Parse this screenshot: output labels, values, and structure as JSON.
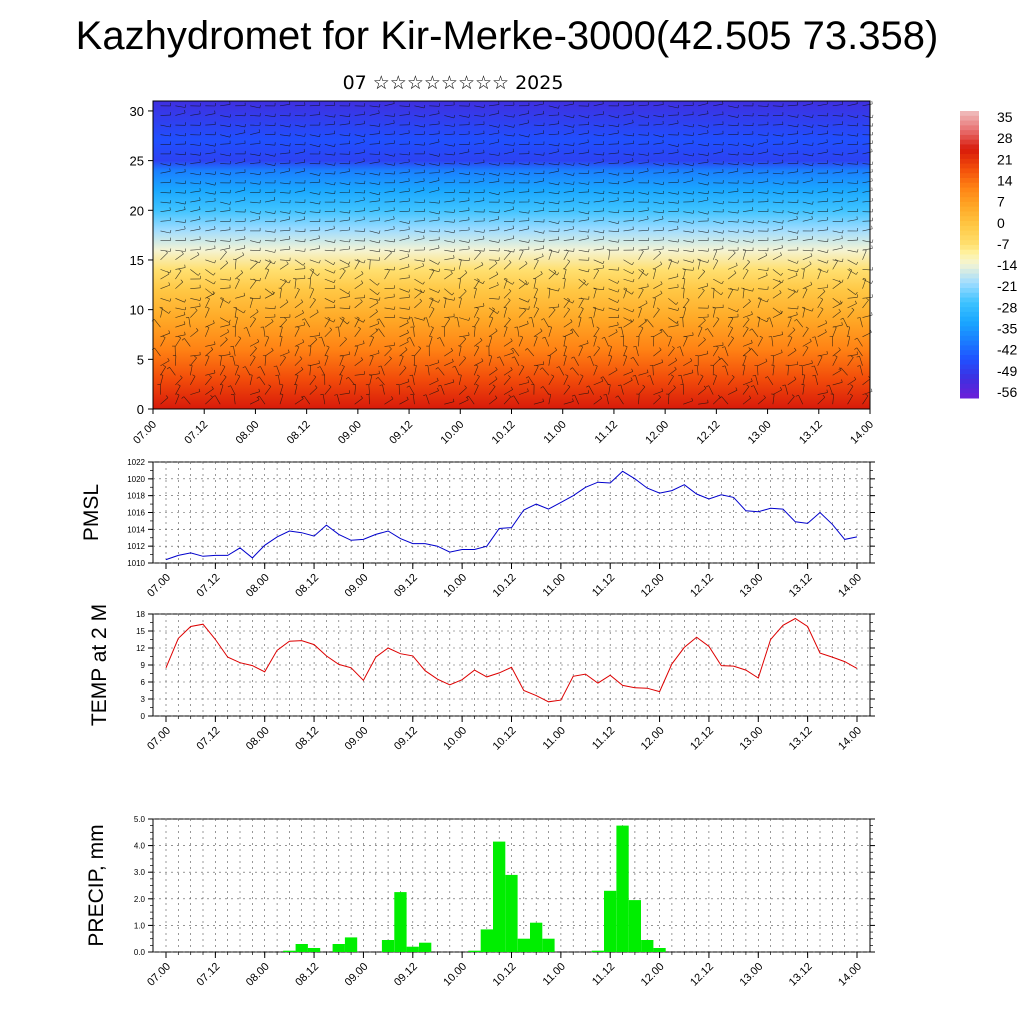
{
  "header": {
    "title": "Kazhydromet for Kir-Merke-3000(42.505 73.358)",
    "subtitle": "07 ☆☆☆☆☆☆☆☆ 2025"
  },
  "colors": {
    "pmsl_line": "#0000cc",
    "temp_line": "#dd0000",
    "precip_bar": "#00ee00"
  },
  "chart_data": [
    {
      "type": "heatmap",
      "name": "cross-section",
      "x_ticks": [
        "07.00",
        "07.12",
        "08.00",
        "08.12",
        "09.00",
        "09.12",
        "10.00",
        "10.12",
        "11.00",
        "11.12",
        "12.00",
        "12.12",
        "13.00",
        "13.12",
        "14.00"
      ],
      "y_ticks": [
        0,
        5,
        10,
        15,
        20,
        25,
        30
      ],
      "ylim": [
        0,
        31
      ],
      "colorbar": {
        "labels": [
          "35",
          "28",
          "21",
          "14",
          "7",
          "0",
          "-7",
          "-14",
          "-21",
          "-28",
          "-35",
          "-42",
          "-49",
          "-56"
        ],
        "range": [
          -63,
          42
        ]
      },
      "temperature_profile": [
        [
          0,
          28
        ],
        [
          3,
          21
        ],
        [
          6,
          14
        ],
        [
          9,
          7
        ],
        [
          12,
          0
        ],
        [
          14,
          -7
        ],
        [
          16,
          -14
        ],
        [
          18,
          -21
        ],
        [
          20,
          -28
        ],
        [
          22,
          -35
        ],
        [
          24,
          -42
        ],
        [
          25,
          -52
        ],
        [
          27,
          -49
        ],
        [
          31,
          -56
        ]
      ],
      "wind_barbs": true
    },
    {
      "type": "line",
      "name": "pmsl",
      "ylabel": "PMSL",
      "ylim": [
        1010,
        1022
      ],
      "y_ticks": [
        1010,
        1012,
        1014,
        1016,
        1018,
        1020,
        1022
      ],
      "x_ticks": [
        "07.00",
        "07.12",
        "08.00",
        "08.12",
        "09.00",
        "09.12",
        "10.00",
        "10.12",
        "11.00",
        "11.12",
        "12.00",
        "12.12",
        "13.00",
        "13.12",
        "14.00"
      ],
      "values": [
        1010.4,
        1010.9,
        1011.2,
        1010.8,
        1010.9,
        1010.9,
        1011.8,
        1010.6,
        1012.1,
        1013.1,
        1013.8,
        1013.6,
        1013.2,
        1014.5,
        1013.4,
        1012.7,
        1012.8,
        1013.4,
        1013.8,
        1012.9,
        1012.3,
        1012.3,
        1012.0,
        1011.3,
        1011.6,
        1011.6,
        1012.0,
        1014.1,
        1014.2,
        1016.3,
        1017.0,
        1016.4,
        1017.2,
        1018.0,
        1019.0,
        1019.6,
        1019.5,
        1020.9,
        1020.0,
        1018.9,
        1018.3,
        1018.6,
        1019.3,
        1018.2,
        1017.6,
        1018.1,
        1017.8,
        1016.2,
        1016.1,
        1016.5,
        1016.4,
        1014.9,
        1014.7,
        1016.0,
        1014.6,
        1012.8,
        1013.1
      ]
    },
    {
      "type": "line",
      "name": "temp",
      "ylabel": "TEMP at 2 M",
      "ylim": [
        0,
        18
      ],
      "y_ticks": [
        0,
        3,
        6,
        9,
        12,
        15,
        18
      ],
      "x_ticks": [
        "07.00",
        "07.12",
        "08.00",
        "08.12",
        "09.00",
        "09.12",
        "10.00",
        "10.12",
        "11.00",
        "11.12",
        "12.00",
        "12.12",
        "13.00",
        "13.12",
        "14.00"
      ],
      "values": [
        8.5,
        13.7,
        15.8,
        16.2,
        13.5,
        10.4,
        9.4,
        8.9,
        7.8,
        11.6,
        13.2,
        13.3,
        12.6,
        10.6,
        9.1,
        8.5,
        6.3,
        10.4,
        12.0,
        11.0,
        10.6,
        8.0,
        6.5,
        5.5,
        6.4,
        8.1,
        6.9,
        7.6,
        8.6,
        4.5,
        3.6,
        2.5,
        2.8,
        7.0,
        7.4,
        5.8,
        7.2,
        5.4,
        5.0,
        4.9,
        4.3,
        9.2,
        12.1,
        13.9,
        12.3,
        8.9,
        8.8,
        8.1,
        6.7,
        13.5,
        16.0,
        17.2,
        15.8,
        11.1,
        10.4,
        9.6,
        8.4
      ]
    },
    {
      "type": "bar",
      "name": "precip",
      "ylabel": "PRECIP, mm",
      "ylim": [
        0,
        5
      ],
      "y_ticks": [
        "0.0",
        "1.0",
        "2.0",
        "3.0",
        "4.0",
        "5.0"
      ],
      "x_ticks": [
        "07.00",
        "07.12",
        "08.00",
        "08.12",
        "09.00",
        "09.12",
        "10.00",
        "10.12",
        "11.00",
        "11.12",
        "12.00",
        "12.12",
        "13.00",
        "13.12",
        "14.00"
      ],
      "values": [
        0,
        0,
        0,
        0,
        0,
        0,
        0,
        0,
        0,
        0,
        0.05,
        0.3,
        0.15,
        0,
        0.3,
        0.55,
        0,
        0,
        0.45,
        2.25,
        0.2,
        0.35,
        0,
        0,
        0,
        0.05,
        0.85,
        4.15,
        2.9,
        0.5,
        1.1,
        0.5,
        0,
        0,
        0,
        0.05,
        2.3,
        4.75,
        1.95,
        0.45,
        0.15,
        0,
        0,
        0,
        0,
        0,
        0,
        0,
        0,
        0,
        0,
        0,
        0,
        0,
        0,
        0,
        0
      ]
    }
  ]
}
